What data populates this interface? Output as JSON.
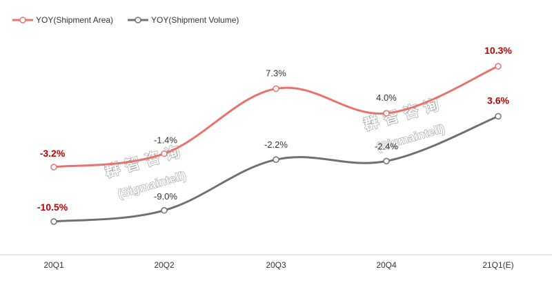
{
  "chart_data": {
    "type": "line",
    "title": "",
    "xlabel": "",
    "ylabel": "",
    "categories": [
      "20Q1",
      "20Q2",
      "20Q3",
      "20Q4",
      "21Q1(E)"
    ],
    "ylim": [
      -14,
      14
    ],
    "grid": false,
    "legend_position": "top-left",
    "series": [
      {
        "name": "YOY(Shipment Area)",
        "color": "#e8736c",
        "values": [
          -3.2,
          -1.4,
          7.3,
          4.0,
          10.3
        ],
        "labels": [
          "-3.2%",
          "-1.4%",
          "7.3%",
          "4.0%",
          "10.3%"
        ],
        "label_emphasis": [
          true,
          false,
          false,
          false,
          true
        ]
      },
      {
        "name": "YOY(Shipment Volume)",
        "color": "#707070",
        "values": [
          -10.5,
          -9.0,
          -2.2,
          -2.4,
          3.6
        ],
        "labels": [
          "-10.5%",
          "-9.0%",
          "-2.2%",
          "-2.4%",
          "3.6%"
        ],
        "label_emphasis": [
          true,
          false,
          false,
          false,
          true
        ]
      }
    ],
    "emphasis_color": "#c00000"
  },
  "watermark": {
    "text_cn": "群智咨询",
    "text_en": "(Sigmaintell)"
  }
}
